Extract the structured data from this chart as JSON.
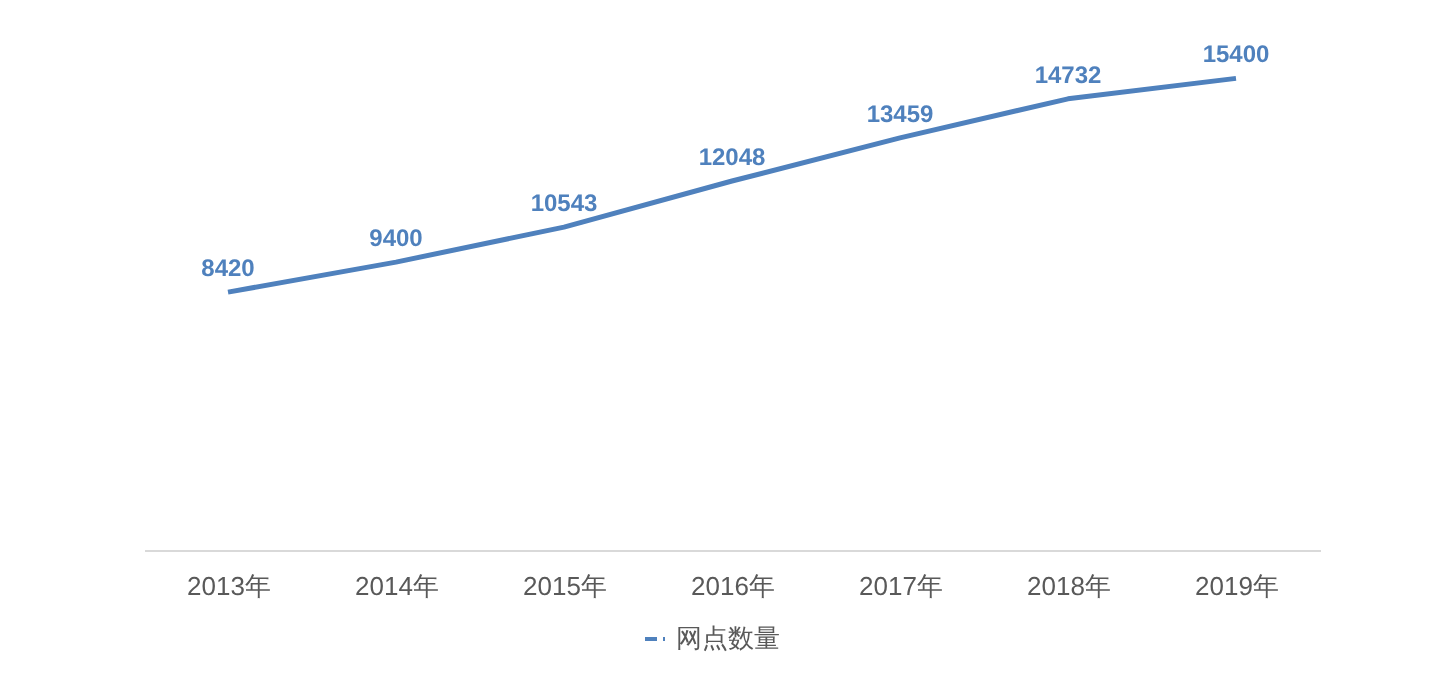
{
  "chart_data": {
    "type": "line",
    "categories": [
      "2013年",
      "2014年",
      "2015年",
      "2016年",
      "2017年",
      "2018年",
      "2019年"
    ],
    "series": [
      {
        "name": "网点数量",
        "color": "#4f81bd",
        "values": [
          8420,
          9400,
          10543,
          12048,
          13459,
          14732,
          15400
        ]
      }
    ],
    "data_labels": true,
    "legend": "bottom",
    "tick_labels": "x",
    "grid": false
  }
}
